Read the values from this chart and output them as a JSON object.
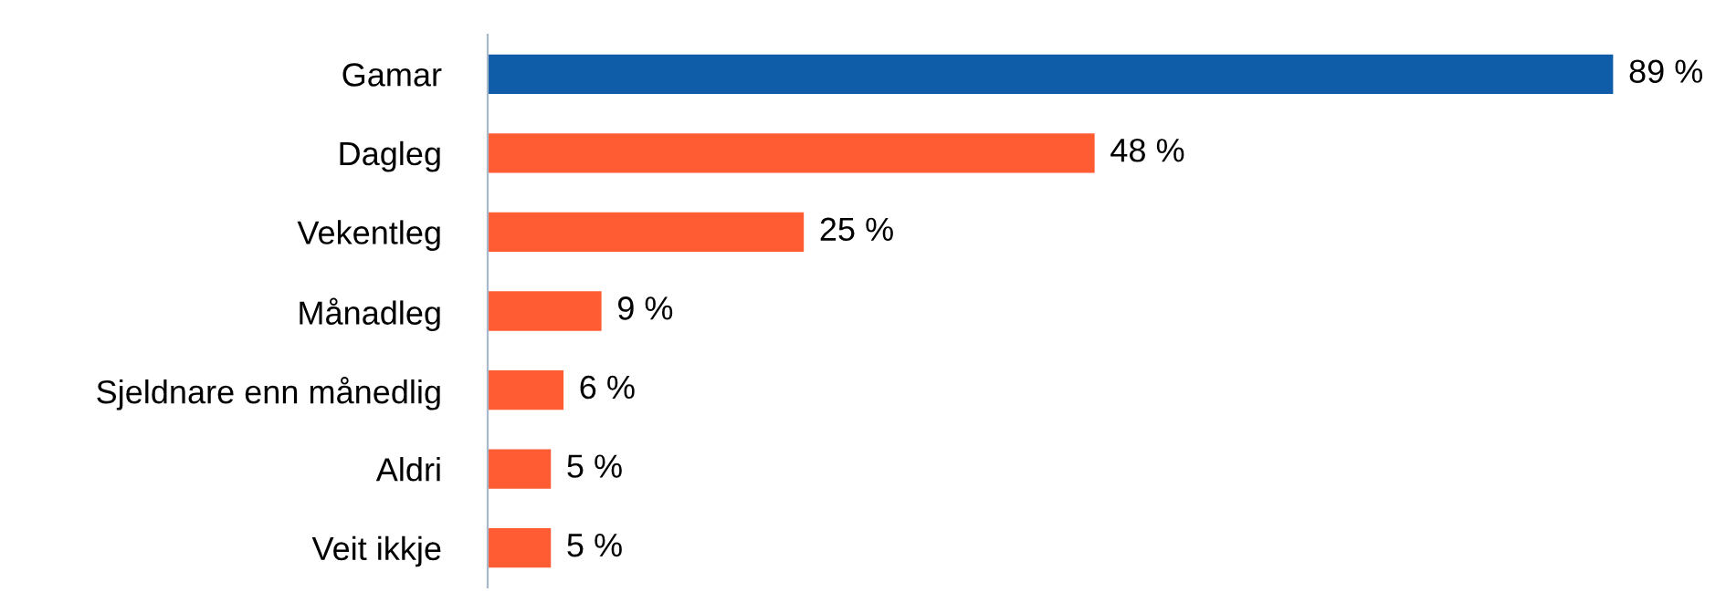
{
  "chart_data": {
    "type": "bar",
    "orientation": "horizontal",
    "categories": [
      "Gamar",
      "Dagleg",
      "Vekentleg",
      "Månadleg",
      "Sjeldnare enn månedlig",
      "Aldri",
      "Veit ikkje"
    ],
    "values": [
      89,
      48,
      25,
      9,
      6,
      5,
      5
    ],
    "colors": [
      "#0f5ca8",
      "#ff5c33",
      "#ff5c33",
      "#ff5c33",
      "#ff5c33",
      "#ff5c33",
      "#ff5c33"
    ],
    "value_labels": [
      "89 %",
      "48 %",
      "25 %",
      "9 %",
      "6 %",
      "5 %",
      "5 %"
    ],
    "tick_labels": "y"
  }
}
